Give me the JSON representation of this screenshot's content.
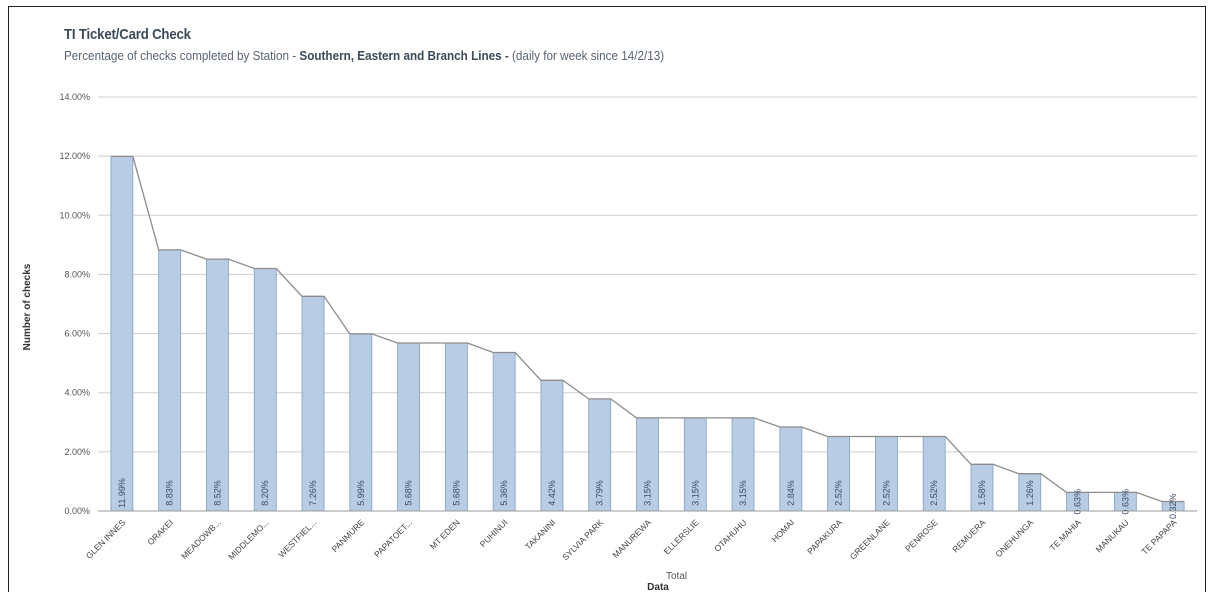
{
  "chart_data": {
    "type": "bar",
    "title": "TI Ticket/Card Check",
    "subtitle": {
      "before": "Percentage of checks completed by Station - ",
      "bold": "Southern, Eastern and Branch Lines -",
      "after": " (daily for week since 14/2/13)"
    },
    "xlabel": "Data",
    "ylabel": "Number of checks",
    "legend_label": "Total",
    "ylim": [
      0,
      14
    ],
    "yticks": [
      "0.00%",
      "2.00%",
      "4.00%",
      "6.00%",
      "8.00%",
      "10.00%",
      "12.00%",
      "14.00%"
    ],
    "grid": true,
    "colors": {
      "bar": "#b8cce4",
      "bar_edge": "#7f9fc7",
      "line": "#8c8c8c",
      "grid": "#cfcfcf"
    },
    "categories": [
      "GLEN INNES",
      "ORAKEI",
      "MEADOWB...",
      "MIDDLEMO...",
      "WESTFIEL...",
      "PANMURE",
      "PAPATOET...",
      "MT EDEN",
      "PUHINUI",
      "TAKANINI",
      "SYLVIA PARK",
      "MANUREWA",
      "ELLERSLIE",
      "OTAHUHU",
      "HOMAI",
      "PAPAKURA",
      "GREENLANE",
      "PENROSE",
      "REMUERA",
      "ONEHUNGA",
      "TE MAHIA",
      "MANUKAU",
      "TE PAPAPA"
    ],
    "values": [
      11.99,
      8.83,
      8.52,
      8.2,
      7.26,
      5.99,
      5.68,
      5.68,
      5.36,
      4.42,
      3.79,
      3.15,
      3.15,
      3.15,
      2.84,
      2.52,
      2.52,
      2.52,
      1.58,
      1.26,
      0.63,
      0.63,
      0.32
    ],
    "data_labels": [
      "11.99%",
      "8.83%",
      "8.52%",
      "8.20%",
      "7.26%",
      "5.99%",
      "5.68%",
      "5.68%",
      "5.36%",
      "4.42%",
      "3.79%",
      "3.15%",
      "3.15%",
      "3.15%",
      "2.84%",
      "2.52%",
      "2.52%",
      "2.52%",
      "1.58%",
      "1.26%",
      "0.63%",
      "0.63%",
      "0.32%"
    ]
  }
}
